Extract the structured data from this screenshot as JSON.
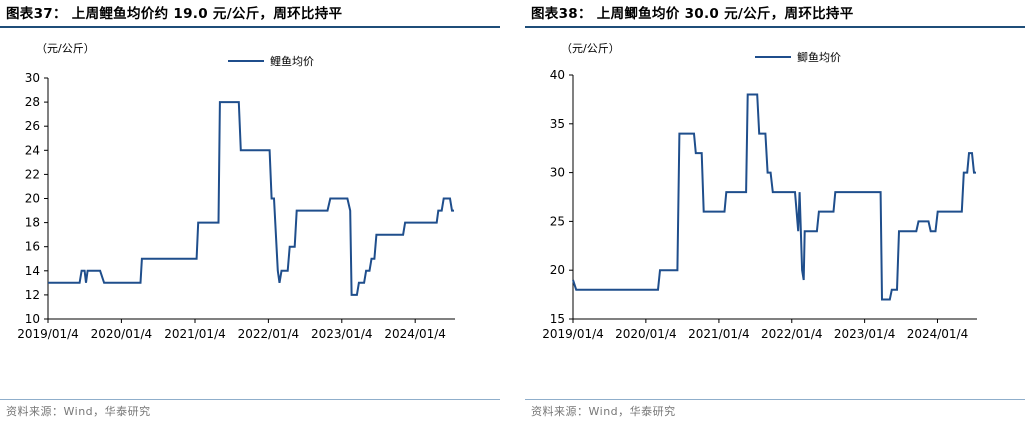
{
  "panels": [
    {
      "title": "图表37：  上周鲤鱼均价约 19.0 元/公斤，周环比持平",
      "source": "资料来源：Wind，华泰研究"
    },
    {
      "title": "图表38：  上周鲫鱼均价 30.0 元/公斤，周环比持平",
      "source": "资料来源：Wind，华泰研究"
    }
  ],
  "chart_data": [
    {
      "type": "line",
      "title": "",
      "unit_label": "（元/公斤）",
      "xlabel": "",
      "ylabel": "",
      "legend": "top-center",
      "grid": false,
      "ylim": [
        10,
        30
      ],
      "yticks": [
        10,
        12,
        14,
        16,
        18,
        20,
        22,
        24,
        26,
        28,
        30
      ],
      "xlim": [
        "2019-01-04",
        "2024-07-20"
      ],
      "xtick_labels": [
        "2019/01/4",
        "2020/01/4",
        "2021/01/4",
        "2022/01/4",
        "2023/01/4",
        "2024/01/4"
      ],
      "xtick_dates": [
        "2019-01-04",
        "2020-01-04",
        "2021-01-04",
        "2022-01-04",
        "2023-01-04",
        "2024-01-04"
      ],
      "series": [
        {
          "name": "鲤鱼均价",
          "color": "#1f4e8c",
          "points": [
            [
              "2019-01-04",
              13
            ],
            [
              "2019-06-10",
              13
            ],
            [
              "2019-06-20",
              14
            ],
            [
              "2019-07-05",
              14
            ],
            [
              "2019-07-12",
              13
            ],
            [
              "2019-07-20",
              14
            ],
            [
              "2019-09-20",
              14
            ],
            [
              "2019-10-10",
              13
            ],
            [
              "2020-04-08",
              13
            ],
            [
              "2020-04-15",
              15
            ],
            [
              "2021-01-12",
              15
            ],
            [
              "2021-01-20",
              18
            ],
            [
              "2021-05-01",
              18
            ],
            [
              "2021-05-08",
              28
            ],
            [
              "2021-08-10",
              28
            ],
            [
              "2021-08-20",
              24
            ],
            [
              "2022-01-10",
              24
            ],
            [
              "2022-01-20",
              20
            ],
            [
              "2022-02-01",
              20
            ],
            [
              "2022-02-20",
              14
            ],
            [
              "2022-02-28",
              13
            ],
            [
              "2022-03-10",
              14
            ],
            [
              "2022-04-10",
              14
            ],
            [
              "2022-04-20",
              16
            ],
            [
              "2022-05-15",
              16
            ],
            [
              "2022-05-25",
              19
            ],
            [
              "2022-10-25",
              19
            ],
            [
              "2022-11-08",
              20
            ],
            [
              "2023-02-01",
              20
            ],
            [
              "2023-02-15",
              19
            ],
            [
              "2023-02-22",
              12
            ],
            [
              "2023-03-20",
              12
            ],
            [
              "2023-03-30",
              13
            ],
            [
              "2023-04-25",
              13
            ],
            [
              "2023-05-05",
              14
            ],
            [
              "2023-05-22",
              14
            ],
            [
              "2023-06-01",
              15
            ],
            [
              "2023-06-15",
              15
            ],
            [
              "2023-06-25",
              17
            ],
            [
              "2023-11-05",
              17
            ],
            [
              "2023-11-15",
              18
            ],
            [
              "2024-04-20",
              18
            ],
            [
              "2024-04-28",
              19
            ],
            [
              "2024-05-15",
              19
            ],
            [
              "2024-05-25",
              20
            ],
            [
              "2024-06-25",
              20
            ],
            [
              "2024-07-05",
              19
            ],
            [
              "2024-07-15",
              19
            ]
          ]
        }
      ]
    },
    {
      "type": "line",
      "title": "",
      "unit_label": "（元/公斤）",
      "xlabel": "",
      "ylabel": "",
      "legend": "top-center",
      "grid": false,
      "ylim": [
        15,
        40
      ],
      "yticks": [
        15,
        20,
        25,
        30,
        35,
        40
      ],
      "xlim": [
        "2019-01-04",
        "2024-07-20"
      ],
      "xtick_labels": [
        "2019/01/4",
        "2020/01/4",
        "2021/01/4",
        "2022/01/4",
        "2023/01/4",
        "2024/01/4"
      ],
      "xtick_dates": [
        "2019-01-04",
        "2020-01-04",
        "2021-01-04",
        "2022-01-04",
        "2023-01-04",
        "2024-01-04"
      ],
      "series": [
        {
          "name": "鲫鱼均价",
          "color": "#1f4e8c",
          "points": [
            [
              "2019-01-04",
              19
            ],
            [
              "2019-01-20",
              18
            ],
            [
              "2020-03-05",
              18
            ],
            [
              "2020-03-15",
              20
            ],
            [
              "2020-06-10",
              20
            ],
            [
              "2020-06-20",
              34
            ],
            [
              "2020-09-01",
              34
            ],
            [
              "2020-09-10",
              32
            ],
            [
              "2020-10-10",
              32
            ],
            [
              "2020-10-20",
              26
            ],
            [
              "2021-02-01",
              26
            ],
            [
              "2021-02-10",
              28
            ],
            [
              "2021-05-20",
              28
            ],
            [
              "2021-05-28",
              38
            ],
            [
              "2021-07-15",
              38
            ],
            [
              "2021-07-25",
              34
            ],
            [
              "2021-08-25",
              34
            ],
            [
              "2021-09-05",
              30
            ],
            [
              "2021-09-20",
              30
            ],
            [
              "2021-10-01",
              28
            ],
            [
              "2022-01-20",
              28
            ],
            [
              "2022-02-05",
              24
            ],
            [
              "2022-02-12",
              28
            ],
            [
              "2022-02-25",
              20
            ],
            [
              "2022-03-05",
              19
            ],
            [
              "2022-03-10",
              24
            ],
            [
              "2022-05-10",
              24
            ],
            [
              "2022-05-20",
              26
            ],
            [
              "2022-08-01",
              26
            ],
            [
              "2022-08-10",
              28
            ],
            [
              "2023-03-25",
              28
            ],
            [
              "2023-04-01",
              17
            ],
            [
              "2023-05-10",
              17
            ],
            [
              "2023-05-20",
              18
            ],
            [
              "2023-06-15",
              18
            ],
            [
              "2023-06-25",
              24
            ],
            [
              "2023-09-20",
              24
            ],
            [
              "2023-10-01",
              25
            ],
            [
              "2023-11-20",
              25
            ],
            [
              "2023-12-01",
              24
            ],
            [
              "2023-12-25",
              24
            ],
            [
              "2024-01-05",
              26
            ],
            [
              "2024-05-05",
              26
            ],
            [
              "2024-05-15",
              30
            ],
            [
              "2024-06-01",
              30
            ],
            [
              "2024-06-10",
              32
            ],
            [
              "2024-06-25",
              32
            ],
            [
              "2024-07-05",
              30
            ],
            [
              "2024-07-15",
              30
            ]
          ]
        }
      ]
    }
  ]
}
